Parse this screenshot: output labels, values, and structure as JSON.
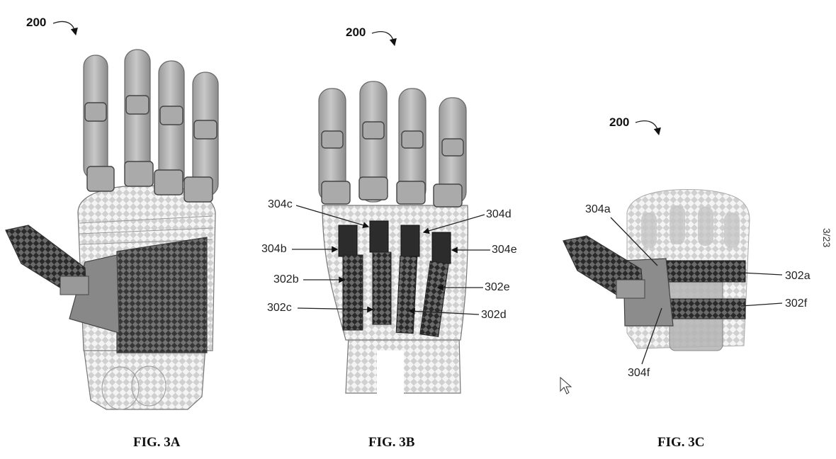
{
  "document": {
    "page_number": "3/23",
    "figures": [
      {
        "id": "fig-3a",
        "caption": "FIG. 3A",
        "ref_label": "200"
      },
      {
        "id": "fig-3b",
        "caption": "FIG. 3B",
        "ref_label": "200",
        "callouts": [
          "304c",
          "304d",
          "304b",
          "304e",
          "302b",
          "302e",
          "302c",
          "302d"
        ]
      },
      {
        "id": "fig-3c",
        "caption": "FIG. 3C",
        "ref_label": "200",
        "callouts": [
          "304a",
          "302a",
          "302f",
          "304f"
        ]
      }
    ],
    "icons": [
      "mouse-cursor-icon"
    ]
  }
}
